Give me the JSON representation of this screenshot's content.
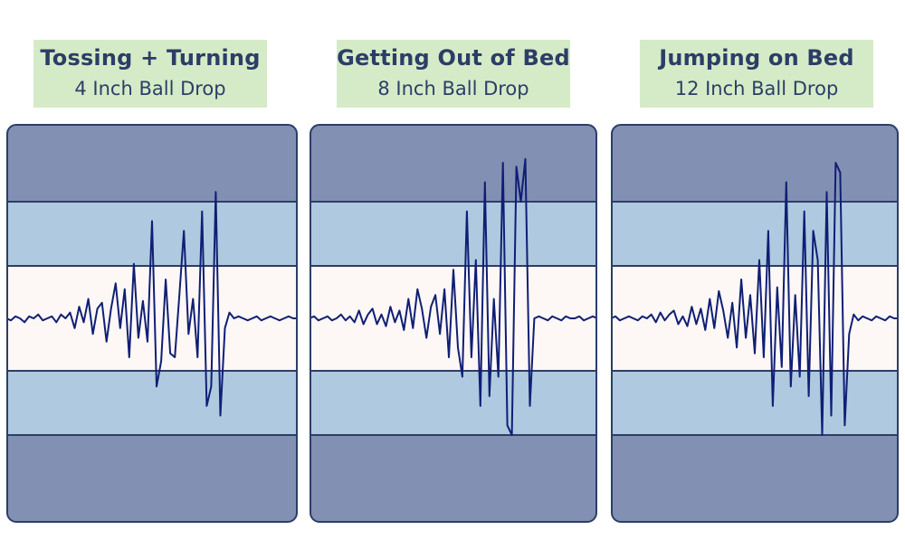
{
  "colors": {
    "label_bg": "#d5ebc8",
    "label_text": "#2c3e66",
    "outer_band": "#8290b4",
    "mid_band": "#afc9e0",
    "center_band": "#fdf7f6",
    "border": "#2c3e66",
    "trace": "#0f1f74"
  },
  "chart_data": [
    {
      "type": "line",
      "title": "Tossing + Turning",
      "subtitle": "4 Inch Ball Drop",
      "ylim": [
        -1,
        1
      ],
      "bands": [
        0.27,
        0.6
      ],
      "grid": false,
      "x": [
        0,
        5,
        10,
        15,
        20,
        25,
        30,
        35,
        40,
        45,
        50,
        55,
        60,
        65,
        70,
        75,
        80,
        85,
        90,
        95,
        100,
        105,
        110,
        115,
        120,
        125,
        130,
        135,
        140,
        145,
        150,
        155,
        160,
        165,
        170,
        175,
        180,
        185,
        190,
        195,
        200,
        205,
        210,
        215,
        220,
        225,
        230,
        235,
        240,
        245,
        250,
        255,
        260,
        265,
        270,
        275,
        280,
        285,
        290,
        295,
        300,
        305,
        310,
        315,
        320
      ],
      "series": [
        {
          "values": [
            0,
            -0.01,
            0.01,
            0,
            -0.02,
            0.01,
            0,
            0.02,
            -0.01,
            0,
            0.01,
            -0.02,
            0.02,
            0,
            0.03,
            -0.05,
            0.06,
            -0.02,
            0.1,
            -0.08,
            0.05,
            0.08,
            -0.12,
            0.05,
            0.18,
            -0.05,
            0.15,
            -0.2,
            0.28,
            -0.1,
            0.09,
            -0.12,
            0.5,
            -0.35,
            -0.22,
            0.2,
            -0.18,
            -0.2,
            0.12,
            0.45,
            -0.08,
            0.1,
            -0.2,
            0.55,
            -0.45,
            -0.35,
            0.65,
            -0.5,
            -0.05,
            0.03,
            0,
            0.01,
            0,
            -0.01,
            0,
            0.01,
            -0.01,
            0,
            0.01,
            0,
            -0.01,
            0,
            0.01,
            0,
            0
          ]
        }
      ]
    },
    {
      "type": "line",
      "title": "Getting Out of Bed",
      "subtitle": "8 Inch Ball Drop",
      "ylim": [
        -1,
        1
      ],
      "bands": [
        0.27,
        0.6
      ],
      "grid": false,
      "x": [
        0,
        5,
        10,
        15,
        20,
        25,
        30,
        35,
        40,
        45,
        50,
        55,
        60,
        65,
        70,
        75,
        80,
        85,
        90,
        95,
        100,
        105,
        110,
        115,
        120,
        125,
        130,
        135,
        140,
        145,
        150,
        155,
        160,
        165,
        170,
        175,
        180,
        185,
        190,
        195,
        200,
        205,
        210,
        215,
        220,
        225,
        230,
        235,
        240,
        245,
        250,
        255,
        260,
        265,
        270,
        275,
        280,
        285,
        290,
        295,
        300,
        305,
        310,
        315,
        320
      ],
      "series": [
        {
          "values": [
            0,
            0.01,
            -0.01,
            0,
            0.01,
            -0.01,
            0,
            0.02,
            -0.01,
            0.01,
            -0.02,
            0.04,
            -0.03,
            0.02,
            0.05,
            -0.03,
            0.02,
            -0.04,
            0.06,
            -0.02,
            0.04,
            -0.06,
            0.1,
            -0.05,
            0.15,
            0.05,
            -0.1,
            0.06,
            0.12,
            -0.08,
            0.15,
            -0.2,
            0.25,
            -0.15,
            -0.3,
            0.55,
            -0.2,
            0.3,
            -0.45,
            0.7,
            -0.4,
            0.1,
            -0.3,
            0.8,
            -0.55,
            -0.6,
            0.78,
            0.6,
            0.82,
            -0.45,
            0,
            0.01,
            0,
            -0.01,
            0.01,
            0,
            -0.01,
            0.01,
            0,
            0,
            0.01,
            -0.01,
            0,
            0.01,
            0
          ]
        }
      ]
    },
    {
      "type": "line",
      "title": "Jumping on Bed",
      "subtitle": "12 Inch Ball Drop",
      "ylim": [
        -1,
        1
      ],
      "bands": [
        0.27,
        0.6
      ],
      "grid": false,
      "x": [
        0,
        5,
        10,
        15,
        20,
        25,
        30,
        35,
        40,
        45,
        50,
        55,
        60,
        65,
        70,
        75,
        80,
        85,
        90,
        95,
        100,
        105,
        110,
        115,
        120,
        125,
        130,
        135,
        140,
        145,
        150,
        155,
        160,
        165,
        170,
        175,
        180,
        185,
        190,
        195,
        200,
        205,
        210,
        215,
        220,
        225,
        230,
        235,
        240,
        245,
        250,
        255,
        260,
        265,
        270,
        275,
        280,
        285,
        290,
        295,
        300,
        305,
        310,
        315,
        320
      ],
      "series": [
        {
          "values": [
            0,
            0.01,
            -0.01,
            0,
            0.01,
            0,
            -0.01,
            0.01,
            0,
            0.02,
            -0.02,
            0.03,
            -0.01,
            0.02,
            0.04,
            -0.03,
            0.01,
            -0.04,
            0.06,
            -0.03,
            0.05,
            -0.06,
            0.1,
            -0.05,
            0.14,
            0.04,
            -0.1,
            0.08,
            -0.15,
            0.2,
            -0.1,
            0.12,
            -0.18,
            0.3,
            -0.2,
            0.45,
            -0.45,
            0.16,
            -0.25,
            0.7,
            -0.35,
            0.12,
            -0.3,
            0.55,
            -0.4,
            0.45,
            0.3,
            -0.6,
            0.65,
            -0.5,
            0.8,
            0.75,
            -0.55,
            -0.08,
            0.02,
            -0.01,
            0.01,
            0,
            -0.01,
            0.01,
            0,
            -0.01,
            0.01,
            0,
            0
          ]
        }
      ]
    }
  ]
}
